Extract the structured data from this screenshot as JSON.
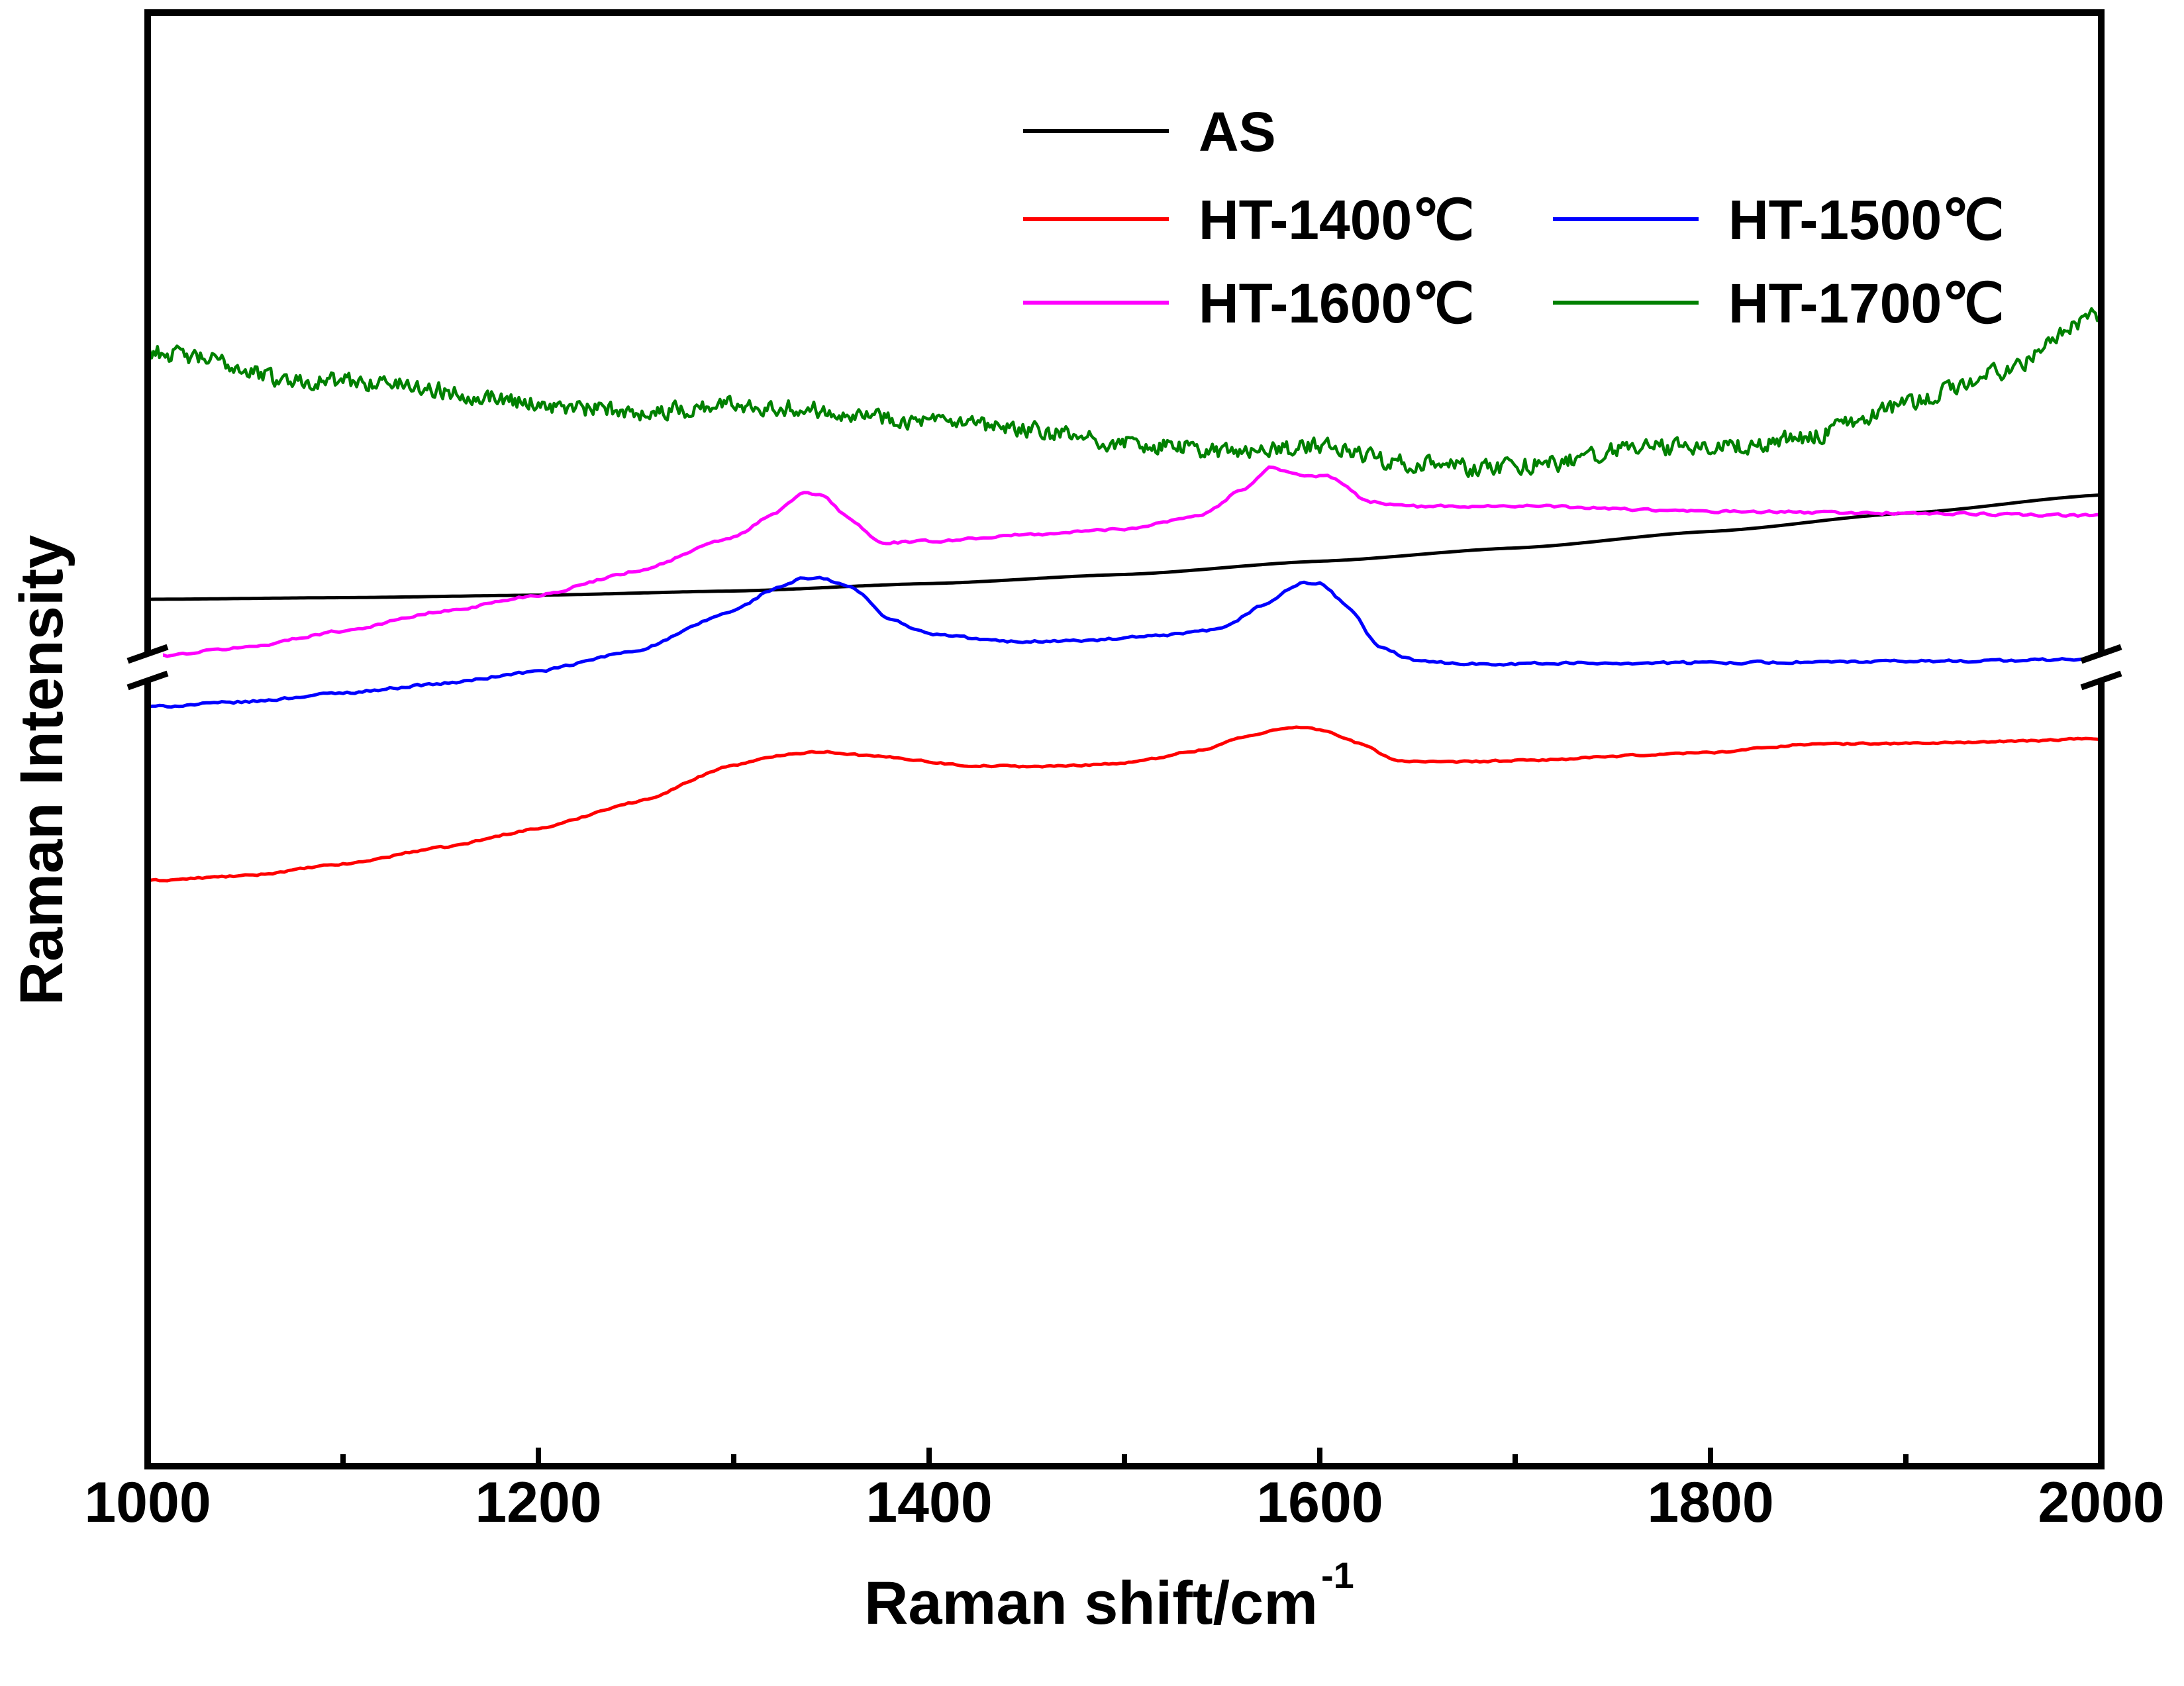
{
  "chart_data": {
    "type": "line",
    "title": "",
    "xlabel": "Raman shift/cm",
    "xlabel_superscript": "-1",
    "ylabel": "Raman Intensity",
    "xlim": [
      1000,
      2000
    ],
    "x_ticks": [
      1000,
      1200,
      1400,
      1600,
      1800,
      2000
    ],
    "x_minor_ticks": [
      1100,
      1300,
      1500,
      1700,
      1900
    ],
    "y_axis_break": true,
    "y_ticks": [],
    "legend_position": "top-right",
    "ylim": [
      0,
      100
    ],
    "series": [
      {
        "name": "AS",
        "color": "#000000",
        "noise": 0,
        "points": [
          [
            1000,
            70.0
          ],
          [
            1100,
            70.2
          ],
          [
            1200,
            70.5
          ],
          [
            1300,
            71.0
          ],
          [
            1400,
            71.9
          ],
          [
            1500,
            73.0
          ],
          [
            1600,
            74.6
          ],
          [
            1700,
            76.2
          ],
          [
            1800,
            78.2
          ],
          [
            1900,
            80.4
          ],
          [
            2000,
            82.6
          ]
        ]
      },
      {
        "name": "HT-1400℃",
        "color": "#ff0000",
        "noise": 0.15,
        "points": [
          [
            1000,
            36.0
          ],
          [
            1050,
            36.6
          ],
          [
            1100,
            38.0
          ],
          [
            1150,
            40.0
          ],
          [
            1200,
            42.3
          ],
          [
            1250,
            45.5
          ],
          [
            1300,
            50.0
          ],
          [
            1330,
            51.4
          ],
          [
            1345,
            51.6
          ],
          [
            1380,
            50.9
          ],
          [
            1420,
            49.9
          ],
          [
            1460,
            49.8
          ],
          [
            1500,
            50.2
          ],
          [
            1540,
            51.8
          ],
          [
            1560,
            53.3
          ],
          [
            1585,
            54.6
          ],
          [
            1600,
            54.3
          ],
          [
            1620,
            52.6
          ],
          [
            1640,
            50.5
          ],
          [
            1660,
            50.3
          ],
          [
            1700,
            50.5
          ],
          [
            1800,
            51.5
          ],
          [
            1850,
            52.5
          ],
          [
            1900,
            52.6
          ],
          [
            1950,
            52.8
          ],
          [
            2000,
            53.2
          ]
        ]
      },
      {
        "name": "HT-1500℃",
        "color": "#0000ff",
        "noise": 0.2,
        "points": [
          [
            1000,
            57.0
          ],
          [
            1050,
            57.6
          ],
          [
            1100,
            58.7
          ],
          [
            1150,
            59.8
          ],
          [
            1200,
            61.3
          ],
          [
            1250,
            63.8
          ],
          [
            1300,
            68.6
          ],
          [
            1320,
            71.2
          ],
          [
            1335,
            72.5
          ],
          [
            1345,
            72.5
          ],
          [
            1360,
            71.5
          ],
          [
            1380,
            67.6
          ],
          [
            1400,
            65.8
          ],
          [
            1440,
            64.9
          ],
          [
            1480,
            65.0
          ],
          [
            1520,
            65.6
          ],
          [
            1550,
            66.4
          ],
          [
            1570,
            69.2
          ],
          [
            1590,
            71.9
          ],
          [
            1600,
            72.0
          ],
          [
            1615,
            69.0
          ],
          [
            1630,
            64.2
          ],
          [
            1650,
            62.5
          ],
          [
            1680,
            62.2
          ],
          [
            1750,
            62.3
          ],
          [
            1850,
            62.4
          ],
          [
            1950,
            62.6
          ],
          [
            2000,
            62.8
          ]
        ]
      },
      {
        "name": "HT-1600℃",
        "color": "#ff00ff",
        "noise": 0.2,
        "points": [
          [
            1000,
            63.0
          ],
          [
            1050,
            64.2
          ],
          [
            1100,
            66.2
          ],
          [
            1150,
            68.5
          ],
          [
            1200,
            70.5
          ],
          [
            1250,
            73.4
          ],
          [
            1300,
            77.5
          ],
          [
            1320,
            80.2
          ],
          [
            1335,
            82.8
          ],
          [
            1345,
            82.6
          ],
          [
            1360,
            79.6
          ],
          [
            1375,
            76.8
          ],
          [
            1400,
            77.0
          ],
          [
            1450,
            77.8
          ],
          [
            1500,
            78.5
          ],
          [
            1540,
            80.2
          ],
          [
            1560,
            83.2
          ],
          [
            1575,
            86.0
          ],
          [
            1590,
            85.0
          ],
          [
            1605,
            84.8
          ],
          [
            1625,
            81.8
          ],
          [
            1650,
            81.2
          ],
          [
            1700,
            81.3
          ],
          [
            1800,
            80.6
          ],
          [
            1900,
            80.4
          ],
          [
            2000,
            80.1
          ]
        ]
      },
      {
        "name": "HT-1700℃",
        "color": "#008000",
        "noise": 1.4,
        "points": [
          [
            1000,
            100.0
          ],
          [
            1030,
            99.0
          ],
          [
            1070,
            96.5
          ],
          [
            1120,
            96.2
          ],
          [
            1170,
            94.6
          ],
          [
            1220,
            93.0
          ],
          [
            1260,
            92.6
          ],
          [
            1300,
            93.6
          ],
          [
            1350,
            92.8
          ],
          [
            1400,
            91.4
          ],
          [
            1450,
            90.4
          ],
          [
            1500,
            88.8
          ],
          [
            1560,
            87.8
          ],
          [
            1600,
            88.5
          ],
          [
            1640,
            86.6
          ],
          [
            1680,
            85.8
          ],
          [
            1720,
            86.4
          ],
          [
            1760,
            88.4
          ],
          [
            1800,
            88.2
          ],
          [
            1850,
            89.6
          ],
          [
            1900,
            93.6
          ],
          [
            1950,
            97.6
          ],
          [
            2000,
            104.5
          ]
        ]
      }
    ]
  }
}
